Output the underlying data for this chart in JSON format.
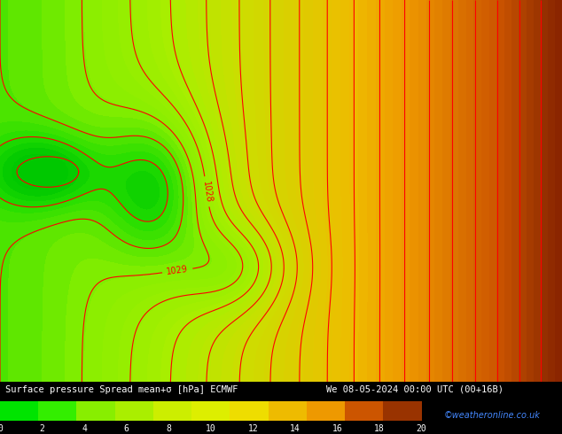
{
  "title_text": "Surface pressure Spread mean+σ [hPa] ECMWF     We 08-05-2024 00:00 UTC (00+16B)",
  "watermark": "©weatheronline.co.uk",
  "colorbar_values": [
    0,
    2,
    4,
    6,
    8,
    10,
    12,
    14,
    16,
    18,
    20
  ],
  "colorbar_colors": [
    "#00e400",
    "#33ee00",
    "#88ee00",
    "#aaee00",
    "#ccee00",
    "#ddee00",
    "#eedd00",
    "#eebb00",
    "#ee9900",
    "#cc5500",
    "#993300"
  ],
  "background_color": "#7cfc00",
  "fig_width": 6.34,
  "fig_height": 4.9,
  "dpi": 100
}
